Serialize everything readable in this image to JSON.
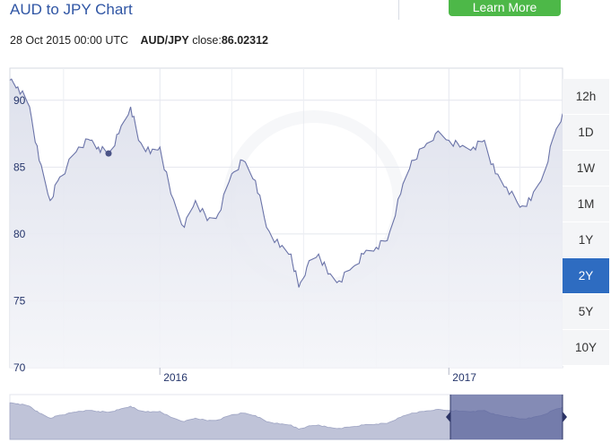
{
  "title": "AUD to JPY Chart",
  "learn_more": "Learn More",
  "info": {
    "timestamp": "28 Oct 2015 00:00 UTC",
    "pair": "AUD/JPY",
    "close_label": "close:",
    "close_value": "86.02312"
  },
  "range_buttons": [
    "12h",
    "1D",
    "1W",
    "1M",
    "1Y",
    "2Y",
    "5Y",
    "10Y"
  ],
  "active_range": "2Y",
  "colors": {
    "accent": "#2e6cc1",
    "line": "#6a73a8",
    "fill": "#dcdfeb",
    "nav_fill": "#bfc3d8",
    "nav_selection": "#5b649c",
    "button": "#4db848"
  },
  "chart_data": {
    "type": "area",
    "ylim": [
      70,
      92.4
    ],
    "yticks": [
      90,
      85,
      80,
      75,
      70
    ],
    "xticks": [
      {
        "label": "2016",
        "date": "2016-01-01"
      },
      {
        "label": "2017",
        "date": "2017-01-01"
      }
    ],
    "x_start": "2015-06-25",
    "x_end": "2017-05-25",
    "marker": {
      "date": "2015-10-28",
      "value": 86.02
    },
    "series": [
      {
        "x": [
          "2015-06-25",
          "2015-07-05",
          "2015-07-20",
          "2015-08-01",
          "2015-08-15",
          "2015-08-25",
          "2015-09-05",
          "2015-09-20",
          "2015-10-05",
          "2015-10-15",
          "2015-10-28",
          "2015-11-10",
          "2015-11-25",
          "2015-12-05",
          "2015-12-20",
          "2016-01-01",
          "2016-01-15",
          "2016-02-01",
          "2016-02-15",
          "2016-03-01",
          "2016-03-15",
          "2016-04-01",
          "2016-04-15",
          "2016-05-01",
          "2016-05-15",
          "2016-06-01",
          "2016-06-15",
          "2016-06-25",
          "2016-07-05",
          "2016-07-20",
          "2016-08-01",
          "2016-08-15",
          "2016-09-01",
          "2016-09-15",
          "2016-10-01",
          "2016-10-15",
          "2016-11-01",
          "2016-11-15",
          "2016-12-01",
          "2016-12-15",
          "2017-01-01",
          "2017-01-15",
          "2017-02-01",
          "2017-02-15",
          "2017-03-01",
          "2017-03-15",
          "2017-04-01",
          "2017-04-15",
          "2017-05-01",
          "2017-05-15",
          "2017-05-25"
        ],
        "values": [
          91.5,
          91.0,
          89.5,
          85.5,
          82.5,
          84.0,
          85.0,
          86.5,
          87.0,
          86.5,
          86.0,
          87.5,
          89.5,
          87.0,
          86.0,
          86.5,
          83.0,
          80.5,
          82.5,
          81.0,
          81.5,
          84.5,
          85.5,
          84.0,
          80.5,
          79.0,
          78.5,
          76.0,
          77.5,
          78.5,
          77.0,
          76.5,
          77.5,
          78.5,
          79.0,
          79.5,
          83.0,
          85.5,
          86.5,
          87.5,
          87.0,
          86.5,
          86.5,
          87.0,
          84.5,
          83.5,
          82.0,
          82.5,
          84.5,
          87.5,
          89.0
        ]
      }
    ]
  }
}
